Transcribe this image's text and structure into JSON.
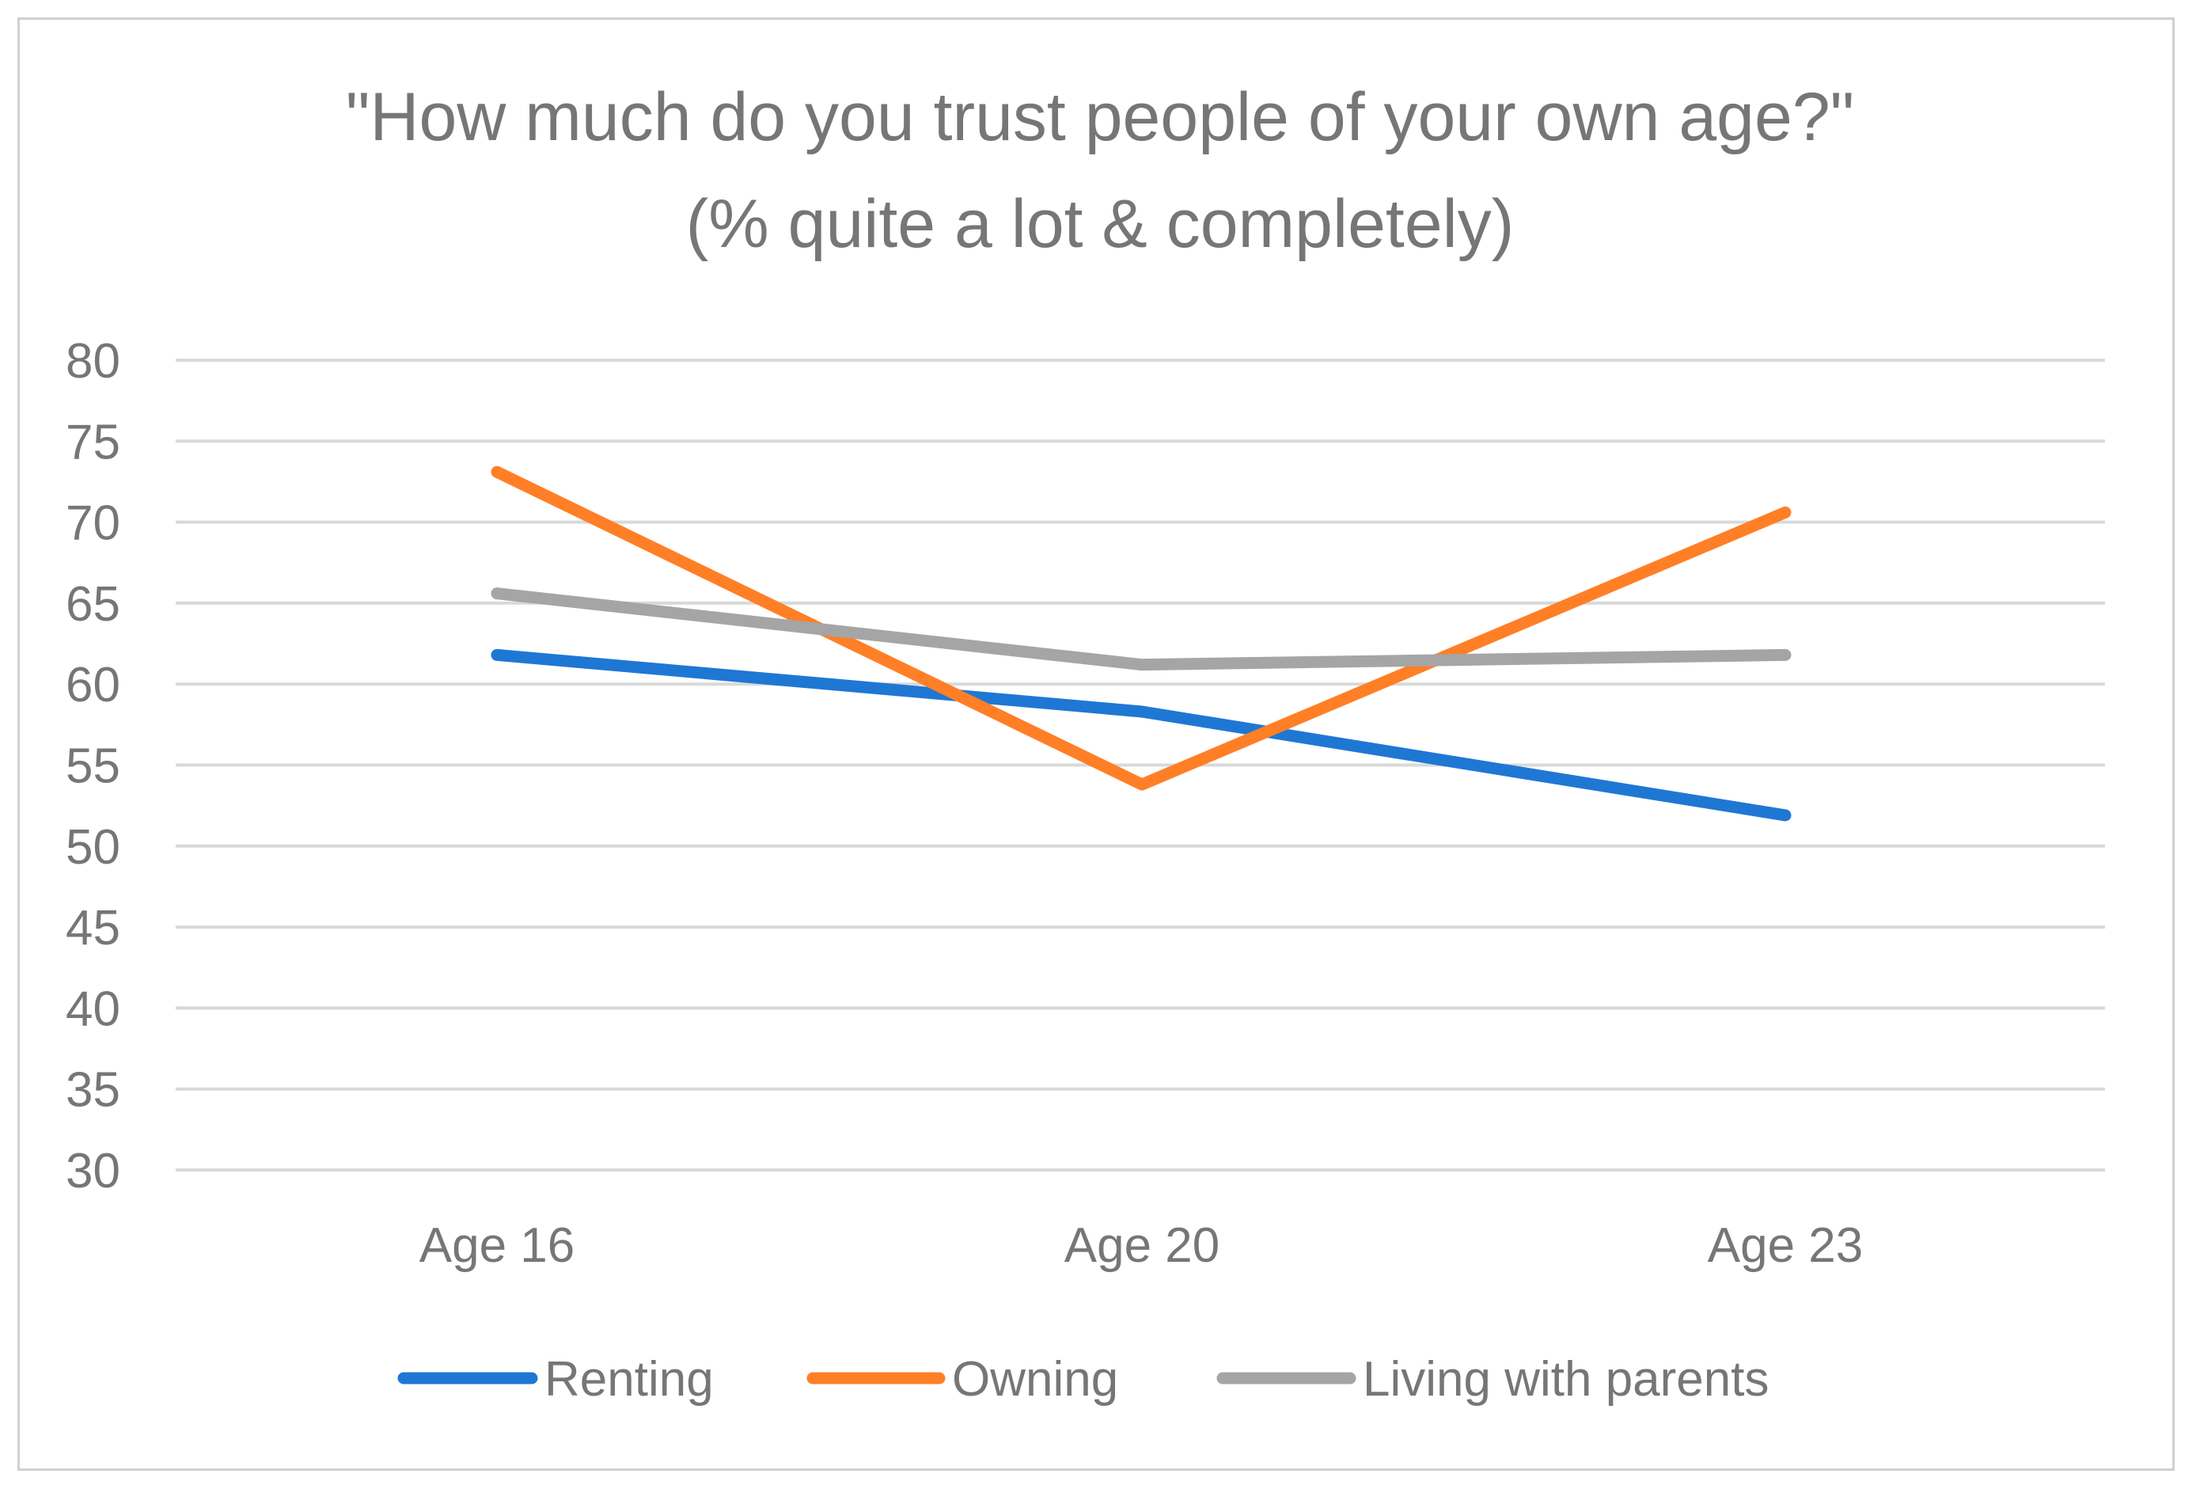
{
  "chart_data": {
    "type": "line",
    "title": "\"How much do you trust people of your own age?\"",
    "subtitle": "(% quite a lot & completely)",
    "categories": [
      "Age 16",
      "Age 20",
      "Age 23"
    ],
    "ylim": [
      30,
      80
    ],
    "yticks": [
      30,
      35,
      40,
      45,
      50,
      55,
      60,
      65,
      70,
      75,
      80
    ],
    "grid": true,
    "legend_position": "bottom",
    "series": [
      {
        "name": "Renting",
        "color": "#1f77d4",
        "values": [
          61.8,
          58.3,
          51.9
        ]
      },
      {
        "name": "Owning",
        "color": "#ff7f27",
        "values": [
          73.1,
          53.8,
          70.6
        ]
      },
      {
        "name": "Living with parents",
        "color": "#a5a5a5",
        "values": [
          65.6,
          61.2,
          61.8
        ]
      }
    ]
  }
}
